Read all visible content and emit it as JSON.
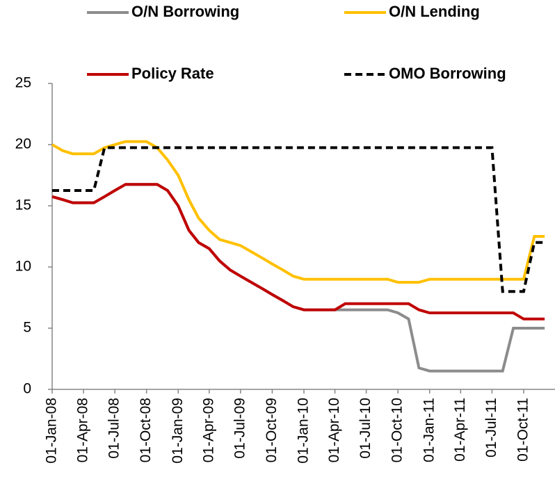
{
  "chart_data": {
    "type": "line",
    "x": [
      "2008-01-01",
      "2008-02-01",
      "2008-03-01",
      "2008-04-01",
      "2008-05-01",
      "2008-06-01",
      "2008-07-01",
      "2008-08-01",
      "2008-09-01",
      "2008-10-01",
      "2008-11-01",
      "2008-12-01",
      "2009-01-01",
      "2009-02-01",
      "2009-03-01",
      "2009-04-01",
      "2009-05-01",
      "2009-06-01",
      "2009-07-01",
      "2009-08-01",
      "2009-09-01",
      "2009-10-01",
      "2009-11-01",
      "2009-12-01",
      "2010-01-01",
      "2010-02-01",
      "2010-03-01",
      "2010-04-01",
      "2010-05-01",
      "2010-06-01",
      "2010-07-01",
      "2010-08-01",
      "2010-09-01",
      "2010-10-01",
      "2010-11-01",
      "2010-12-01",
      "2011-01-01",
      "2011-02-01",
      "2011-03-01",
      "2011-04-01",
      "2011-05-01",
      "2011-06-01",
      "2011-07-01",
      "2011-08-01",
      "2011-09-01",
      "2011-10-01",
      "2011-11-01",
      "2011-12-01"
    ],
    "series": [
      {
        "name": "O/N Borrowing",
        "color": "#8c8c8c",
        "values": [
          15.75,
          15.5,
          15.25,
          15.25,
          15.25,
          15.75,
          16.25,
          16.75,
          16.75,
          16.75,
          16.75,
          16.25,
          15.0,
          13.0,
          12.0,
          11.5,
          10.5,
          9.75,
          9.25,
          8.75,
          8.25,
          7.75,
          7.25,
          6.75,
          6.5,
          6.5,
          6.5,
          6.5,
          6.5,
          6.5,
          6.5,
          6.5,
          6.5,
          6.25,
          5.75,
          1.75,
          1.5,
          1.5,
          1.5,
          1.5,
          1.5,
          1.5,
          1.5,
          1.5,
          5.0,
          5.0,
          5.0,
          5.0
        ]
      },
      {
        "name": "O/N Lending",
        "color": "#ffc000",
        "values": [
          20.0,
          19.5,
          19.25,
          19.25,
          19.25,
          19.75,
          20.0,
          20.25,
          20.25,
          20.25,
          19.75,
          18.75,
          17.5,
          15.5,
          14.0,
          13.0,
          12.25,
          12.0,
          11.75,
          11.25,
          10.75,
          10.25,
          9.75,
          9.25,
          9.0,
          9.0,
          9.0,
          9.0,
          9.0,
          9.0,
          9.0,
          9.0,
          9.0,
          8.75,
          8.75,
          8.75,
          9.0,
          9.0,
          9.0,
          9.0,
          9.0,
          9.0,
          9.0,
          9.0,
          9.0,
          9.0,
          12.5,
          12.5
        ]
      },
      {
        "name": "Policy Rate",
        "color": "#c00000",
        "values": [
          15.75,
          15.5,
          15.25,
          15.25,
          15.25,
          15.75,
          16.25,
          16.75,
          16.75,
          16.75,
          16.75,
          16.25,
          15.0,
          13.0,
          12.0,
          11.5,
          10.5,
          9.75,
          9.25,
          8.75,
          8.25,
          7.75,
          7.25,
          6.75,
          6.5,
          6.5,
          6.5,
          6.5,
          7.0,
          7.0,
          7.0,
          7.0,
          7.0,
          7.0,
          7.0,
          6.5,
          6.25,
          6.25,
          6.25,
          6.25,
          6.25,
          6.25,
          6.25,
          6.25,
          6.25,
          5.75,
          5.75,
          5.75
        ]
      },
      {
        "name": "OMO Borrowing",
        "color": "#000000",
        "dashed": true,
        "values": [
          16.25,
          16.25,
          16.25,
          16.25,
          16.25,
          19.75,
          19.75,
          19.75,
          19.75,
          19.75,
          19.75,
          19.75,
          19.75,
          19.75,
          19.75,
          19.75,
          19.75,
          19.75,
          19.75,
          19.75,
          19.75,
          19.75,
          19.75,
          19.75,
          19.75,
          19.75,
          19.75,
          19.75,
          19.75,
          19.75,
          19.75,
          19.75,
          19.75,
          19.75,
          19.75,
          19.75,
          19.75,
          19.75,
          19.75,
          19.75,
          19.75,
          19.75,
          19.75,
          8.0,
          8.0,
          8.0,
          12.0,
          12.0
        ]
      }
    ],
    "xlim": [
      "2008-01-01",
      "2011-12-31"
    ],
    "xticks": [
      {
        "value": "2008-01-01",
        "label": "01-Jan-08"
      },
      {
        "value": "2008-04-01",
        "label": "01-Apr-08"
      },
      {
        "value": "2008-07-01",
        "label": "01-Jul-08"
      },
      {
        "value": "2008-10-01",
        "label": "01-Oct-08"
      },
      {
        "value": "2009-01-01",
        "label": "01-Jan-09"
      },
      {
        "value": "2009-04-01",
        "label": "01-Apr-09"
      },
      {
        "value": "2009-07-01",
        "label": "01-Jul-09"
      },
      {
        "value": "2009-10-01",
        "label": "01-Oct-09"
      },
      {
        "value": "2010-01-01",
        "label": "01-Jan-10"
      },
      {
        "value": "2010-04-01",
        "label": "01-Apr-10"
      },
      {
        "value": "2010-07-01",
        "label": "01-Jul-10"
      },
      {
        "value": "2010-10-01",
        "label": "01-Oct-10"
      },
      {
        "value": "2011-01-01",
        "label": "01-Jan-11"
      },
      {
        "value": "2011-04-01",
        "label": "01-Apr-11"
      },
      {
        "value": "2011-07-01",
        "label": "01-Jul-11"
      },
      {
        "value": "2011-10-01",
        "label": "01-Oct-11"
      }
    ],
    "ylim": [
      0,
      25
    ],
    "yticks": [
      0,
      5,
      10,
      15,
      20,
      25
    ],
    "grid": false
  }
}
